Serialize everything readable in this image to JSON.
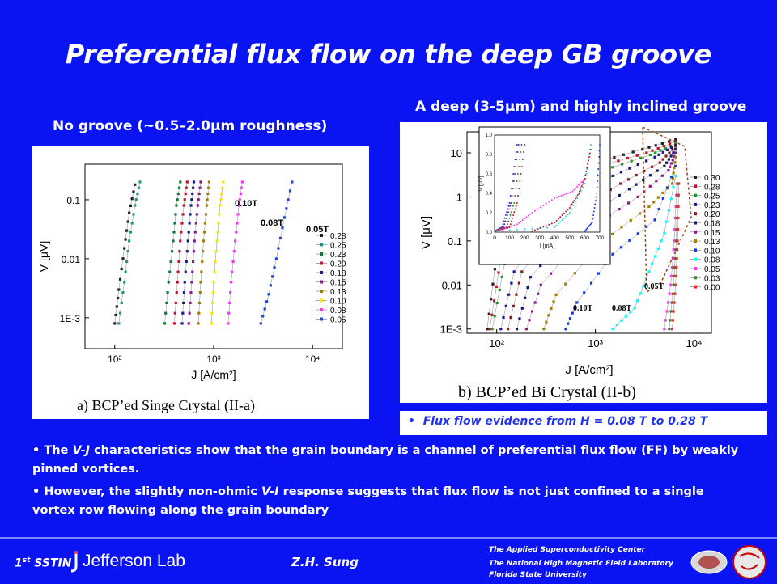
{
  "slide": {
    "title": "Preferential flux flow on the deep GB groove",
    "subtitle_left": "No groove (~0.5–2.0μm roughness)",
    "subtitle_right": "A deep (3-5μm) and highly inclined groove",
    "flux_note": "Flux flow evidence from H = 0.08 T to 0.28 T",
    "bullet1": {
      "pre": "The ",
      "em": "V-J",
      "post": " characteristics show that the grain boundary  is a channel of preferential flux flow (FF) by weakly pinned vortices."
    },
    "bullet2": {
      "pre": "However, the slightly non-ohmic  ",
      "em": "V-I",
      "post": " response suggests that flux flow is not just confined to a single vortex row flowing along the grain boundary"
    },
    "footer": {
      "conf_num": "1",
      "conf_sup": "st",
      "conf_name": "SSTIN",
      "lab": "Jefferson Lab",
      "author": "Z.H. Sung",
      "org1": "The Applied Superconductivity Center",
      "org2": "The National High Magnetic Field Laboratory",
      "org3": "Florida State University"
    },
    "colors": {
      "background": "#0a14f2",
      "text": "#ffffff",
      "note": "#2233ee"
    }
  },
  "chart_data": [
    {
      "type": "scatter",
      "caption": "a) BCP’ed Singe Crystal (II-a)",
      "xlabel": "J [A/cm²]",
      "ylabel": "V [μV]",
      "xscale": "log",
      "yscale": "log",
      "xlim": [
        50,
        20000
      ],
      "ylim": [
        0.0003,
        0.4
      ],
      "xticks": [
        "10²",
        "10³",
        "10⁴"
      ],
      "yticks": [
        "1E-3",
        "0.01",
        "0.1"
      ],
      "annotations": [
        "0.10T",
        "0.08T",
        "0.05T"
      ],
      "legend_position": "right",
      "series": [
        {
          "name": "0.28",
          "color": "#222222",
          "values": [
            [
              100,
              0.0008
            ],
            [
              110,
              0.003
            ],
            [
              125,
              0.015
            ],
            [
              140,
              0.06
            ],
            [
              160,
              0.18
            ]
          ]
        },
        {
          "name": "0.25",
          "color": "#1a9a8a",
          "values": [
            [
              110,
              0.0008
            ],
            [
              125,
              0.004
            ],
            [
              140,
              0.02
            ],
            [
              160,
              0.08
            ],
            [
              180,
              0.2
            ]
          ]
        },
        {
          "name": "0.23",
          "color": "#117a3a",
          "values": [
            [
              320,
              0.0008
            ],
            [
              350,
              0.004
            ],
            [
              390,
              0.02
            ],
            [
              420,
              0.08
            ],
            [
              460,
              0.2
            ]
          ]
        },
        {
          "name": "0.20",
          "color": "#c8102e",
          "values": [
            [
              400,
              0.0008
            ],
            [
              430,
              0.004
            ],
            [
              460,
              0.02
            ],
            [
              500,
              0.08
            ],
            [
              540,
              0.2
            ]
          ]
        },
        {
          "name": "0.18",
          "color": "#1a1a8a",
          "values": [
            [
              480,
              0.0008
            ],
            [
              510,
              0.004
            ],
            [
              550,
              0.02
            ],
            [
              590,
              0.08
            ],
            [
              630,
              0.2
            ]
          ]
        },
        {
          "name": "0.15",
          "color": "#8b1a8b",
          "values": [
            [
              560,
              0.0008
            ],
            [
              600,
              0.004
            ],
            [
              640,
              0.02
            ],
            [
              690,
              0.08
            ],
            [
              740,
              0.2
            ]
          ]
        },
        {
          "name": "0.13",
          "color": "#a08000",
          "values": [
            [
              700,
              0.0008
            ],
            [
              740,
              0.004
            ],
            [
              790,
              0.02
            ],
            [
              850,
              0.08
            ],
            [
              900,
              0.2
            ]
          ]
        },
        {
          "name": "0.10",
          "color": "#f5e800",
          "values": [
            [
              950,
              0.0008
            ],
            [
              1000,
              0.004
            ],
            [
              1080,
              0.02
            ],
            [
              1160,
              0.08
            ],
            [
              1250,
              0.2
            ]
          ]
        },
        {
          "name": "0.08",
          "color": "#ff33ff",
          "values": [
            [
              1400,
              0.0008
            ],
            [
              1500,
              0.004
            ],
            [
              1650,
              0.02
            ],
            [
              1800,
              0.08
            ],
            [
              1950,
              0.2
            ]
          ]
        },
        {
          "name": "0.05",
          "color": "#2244dd",
          "values": [
            [
              3000,
              0.0008
            ],
            [
              3600,
              0.0025
            ],
            [
              4300,
              0.01
            ],
            [
              5200,
              0.05
            ],
            [
              6200,
              0.2
            ]
          ]
        }
      ]
    },
    {
      "type": "scatter",
      "caption": "b) BCP’ed Bi Crystal (II-b)",
      "xlabel": "J [A/cm²]",
      "ylabel": "V [μV]",
      "xscale": "log",
      "yscale": "log",
      "xlim": [
        50,
        15000
      ],
      "ylim": [
        0.0008,
        30
      ],
      "xticks": [
        "10²",
        "10³",
        "10⁴"
      ],
      "yticks": [
        "1E-3",
        "0.01",
        "0.1",
        "1",
        "10"
      ],
      "annotations": [
        "0.10T",
        "0.08T",
        "0.05T"
      ],
      "legend_position": "right",
      "series": [
        {
          "name": "0.30",
          "color": "#222222",
          "values": [
            [
              80,
              0.001
            ],
            [
              100,
              0.05
            ],
            [
              300,
              1.5
            ],
            [
              1000,
              6
            ],
            [
              3000,
              12
            ],
            [
              6500,
              20
            ]
          ]
        },
        {
          "name": "0.28",
          "color": "#c8102e",
          "values": [
            [
              85,
              0.001
            ],
            [
              110,
              0.04
            ],
            [
              330,
              1.2
            ],
            [
              1100,
              5
            ],
            [
              3300,
              10
            ],
            [
              6500,
              18
            ]
          ]
        },
        {
          "name": "0.25",
          "color": "#1a9a2a",
          "values": [
            [
              90,
              0.001
            ],
            [
              120,
              0.03
            ],
            [
              360,
              0.9
            ],
            [
              1200,
              4
            ],
            [
              3600,
              9
            ],
            [
              6500,
              16
            ]
          ]
        },
        {
          "name": "0.23",
          "color": "#1a1a8a",
          "values": [
            [
              110,
              0.001
            ],
            [
              150,
              0.02
            ],
            [
              450,
              0.6
            ],
            [
              1500,
              3
            ],
            [
              4000,
              8
            ],
            [
              6500,
              15
            ]
          ]
        },
        {
          "name": "0.20",
          "color": "#8b1a1a",
          "values": [
            [
              130,
              0.001
            ],
            [
              180,
              0.02
            ],
            [
              550,
              0.4
            ],
            [
              1800,
              2
            ],
            [
              4500,
              6
            ],
            [
              6500,
              14
            ]
          ]
        },
        {
          "name": "0.18",
          "color": "#0a1a6a",
          "values": [
            [
              160,
              0.001
            ],
            [
              220,
              0.015
            ],
            [
              700,
              0.3
            ],
            [
              2200,
              1.5
            ],
            [
              5000,
              5
            ],
            [
              6500,
              12
            ]
          ]
        },
        {
          "name": "0.15",
          "color": "#8b1a8b",
          "values": [
            [
              200,
              0.001
            ],
            [
              280,
              0.01
            ],
            [
              900,
              0.2
            ],
            [
              2700,
              1
            ],
            [
              5500,
              4
            ],
            [
              6500,
              10
            ]
          ]
        },
        {
          "name": "0.13",
          "color": "#a08000",
          "values": [
            [
              300,
              0.001
            ],
            [
              400,
              0.006
            ],
            [
              1200,
              0.1
            ],
            [
              3500,
              0.6
            ],
            [
              6000,
              2
            ],
            [
              6500,
              8
            ]
          ]
        },
        {
          "name": "0.10",
          "color": "#1a3ae0",
          "values": [
            [
              500,
              0.001
            ],
            [
              650,
              0.004
            ],
            [
              1500,
              0.05
            ],
            [
              4000,
              0.3
            ],
            [
              6500,
              5
            ]
          ]
        },
        {
          "name": "0.08",
          "color": "#00ffff",
          "values": [
            [
              1500,
              0.001
            ],
            [
              2500,
              0.003
            ],
            [
              3500,
              0.02
            ],
            [
              5000,
              0.15
            ],
            [
              6500,
              3
            ]
          ]
        },
        {
          "name": "0.05",
          "color": "#ff33ff",
          "values": [
            [
              5000,
              0.001
            ],
            [
              5800,
              0.01
            ],
            [
              6300,
              0.1
            ],
            [
              6700,
              2
            ]
          ]
        },
        {
          "name": "0.03",
          "color": "#2a8a2a",
          "values": [
            [
              5600,
              0.001
            ],
            [
              6200,
              0.01
            ],
            [
              6600,
              0.1
            ],
            [
              6800,
              2
            ]
          ]
        },
        {
          "name": "0.00",
          "color": "#ff2222",
          "values": [
            [
              6000,
              0.001
            ],
            [
              6500,
              0.01
            ],
            [
              6800,
              0.1
            ],
            [
              7000,
              2
            ]
          ]
        }
      ],
      "inset": {
        "xlabel": "I [mA]",
        "ylabel": "V [μV]",
        "xlim": [
          0,
          700
        ],
        "ylim": [
          0,
          1.0
        ],
        "xticks": [
          "0",
          "100",
          "200",
          "300",
          "400",
          "500",
          "600",
          "700"
        ],
        "yticks": [
          "0.0",
          "0.2",
          "0.4",
          "0.6",
          "0.8",
          "1.0"
        ],
        "series": [
          {
            "color": "#2244dd",
            "values": [
              [
                0,
                0.01
              ],
              [
                50,
                0.05
              ],
              [
                100,
                0.3
              ],
              [
                150,
                0.9
              ]
            ]
          },
          {
            "color": "#8b1a8b",
            "values": [
              [
                0,
                0.01
              ],
              [
                60,
                0.05
              ],
              [
                110,
                0.3
              ],
              [
                160,
                0.9
              ]
            ]
          },
          {
            "color": "#1a9a2a",
            "values": [
              [
                0,
                0.01
              ],
              [
                80,
                0.05
              ],
              [
                130,
                0.3
              ],
              [
                180,
                0.9
              ]
            ]
          },
          {
            "color": "#c8102e",
            "values": [
              [
                0,
                0.01
              ],
              [
                100,
                0.05
              ],
              [
                150,
                0.3
              ],
              [
                200,
                0.9
              ]
            ]
          },
          {
            "color": "#ff33ff",
            "values": [
              [
                0,
                0.01
              ],
              [
                150,
                0.08
              ],
              [
                250,
                0.2
              ],
              [
                400,
                0.35
              ],
              [
                520,
                0.42
              ],
              [
                600,
                0.55
              ]
            ]
          },
          {
            "color": "#00dddd",
            "values": [
              [
                0,
                0.01
              ],
              [
                400,
                0.05
              ],
              [
                500,
                0.2
              ],
              [
                600,
                0.5
              ],
              [
                640,
                0.9
              ]
            ]
          },
          {
            "color": "#c8102e",
            "values": [
              [
                250,
                0.01
              ],
              [
                400,
                0.1
              ],
              [
                500,
                0.25
              ],
              [
                560,
                0.4
              ],
              [
                600,
                0.55
              ],
              [
                640,
                0.85
              ]
            ]
          },
          {
            "color": "#2244dd",
            "values": [
              [
                600,
                0.01
              ],
              [
                650,
                0.1
              ],
              [
                680,
                0.4
              ],
              [
                700,
                0.9
              ]
            ]
          }
        ]
      }
    }
  ]
}
